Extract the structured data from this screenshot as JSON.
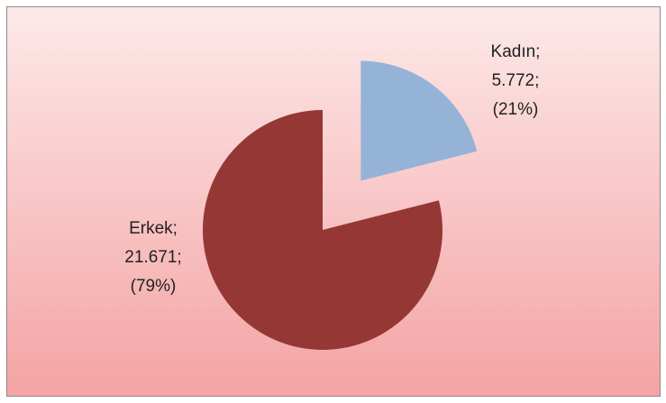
{
  "chart_data": {
    "type": "pie",
    "categories": [
      "Kadın;",
      "Erkek;"
    ],
    "values": [
      5772,
      21671
    ],
    "value_labels": [
      "5.772;",
      "21.671;"
    ],
    "percent_labels": [
      "(21%)",
      "(79%)"
    ],
    "colors": [
      "#95b3d7",
      "#953735"
    ],
    "exploded": [
      true,
      false
    ]
  }
}
